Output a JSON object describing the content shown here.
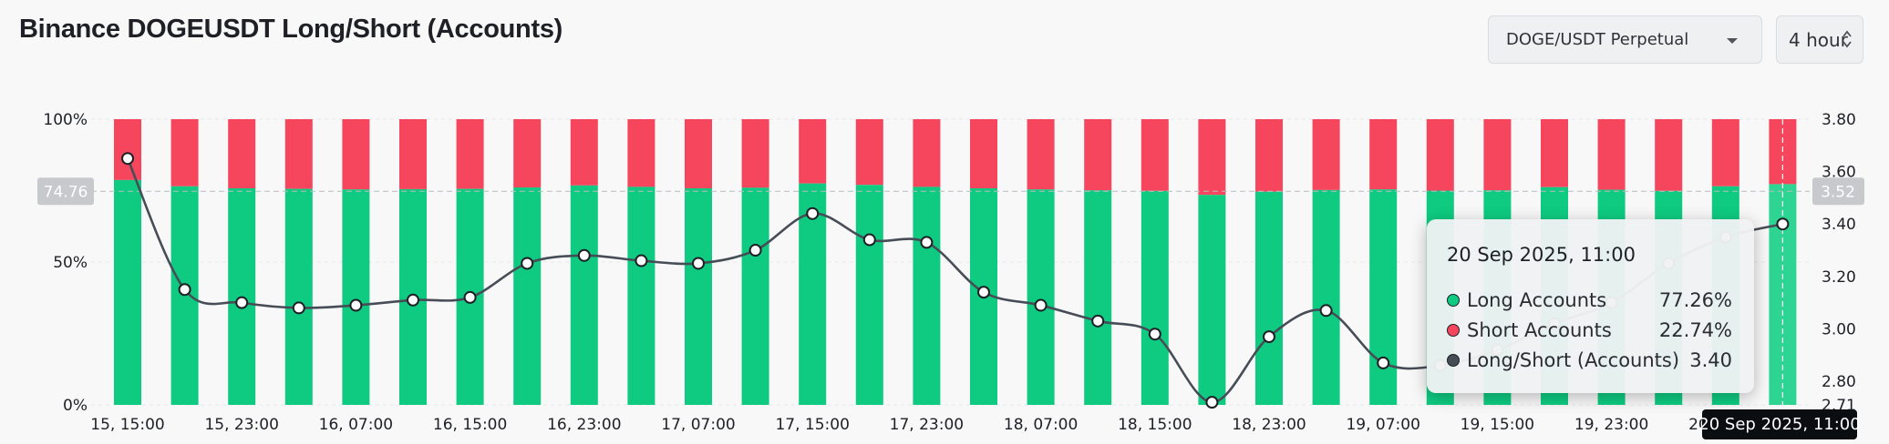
{
  "header": {
    "title": "Binance DOGEUSDT Long/Short (Accounts)",
    "market_select": "DOGE/USDT Perpetual",
    "period_select": "4 hour"
  },
  "colors": {
    "long": "#0ecb81",
    "short": "#f6465d",
    "ratio_line": "#474d57",
    "background": "#f8f8f8"
  },
  "icons": {
    "market_caret": "chevron-down-icon",
    "period_caret": "up-down-chevron-icon"
  },
  "chart_data": {
    "type": "bar",
    "title": "Binance DOGEUSDT Long/Short (Accounts)",
    "categories": [
      "15, 15:00",
      "15, 19:00",
      "15, 23:00",
      "16, 03:00",
      "16, 07:00",
      "16, 11:00",
      "16, 15:00",
      "16, 19:00",
      "16, 23:00",
      "17, 03:00",
      "17, 07:00",
      "17, 11:00",
      "17, 15:00",
      "17, 19:00",
      "17, 23:00",
      "18, 03:00",
      "18, 07:00",
      "18, 11:00",
      "18, 15:00",
      "18, 19:00",
      "18, 23:00",
      "19, 03:00",
      "19, 07:00",
      "19, 11:00",
      "19, 15:00",
      "19, 19:00",
      "19, 23:00",
      "20, 03:00",
      "20, 07:00",
      "20, 11:00"
    ],
    "x_tick_labels": [
      "15, 15:00",
      "15, 23:00",
      "16, 07:00",
      "16, 15:00",
      "16, 23:00",
      "17, 07:00",
      "17, 15:00",
      "17, 23:00",
      "18, 07:00",
      "18, 15:00",
      "18, 23:00",
      "19, 07:00",
      "19, 15:00",
      "19, 23:00",
      "20, 07:00"
    ],
    "series": [
      {
        "name": "Long Accounts",
        "axis": "left",
        "values": [
          78.7,
          76.5,
          75.8,
          75.6,
          75.4,
          75.5,
          75.6,
          76.1,
          76.8,
          76.3,
          75.8,
          76.0,
          77.5,
          77.0,
          76.3,
          75.8,
          75.4,
          75.1,
          74.9,
          73.5,
          74.6,
          75.2,
          75.4,
          75.0,
          75.1,
          76.2,
          75.3,
          74.9,
          76.5,
          77.26
        ]
      },
      {
        "name": "Short Accounts",
        "axis": "left",
        "values": [
          21.3,
          23.5,
          24.2,
          24.4,
          24.6,
          24.5,
          24.4,
          23.9,
          23.2,
          23.7,
          24.2,
          24.0,
          22.5,
          23.0,
          23.7,
          24.2,
          24.6,
          24.9,
          25.1,
          26.5,
          25.4,
          24.8,
          24.6,
          25.0,
          24.9,
          23.8,
          24.7,
          25.1,
          23.5,
          22.74
        ]
      },
      {
        "name": "Long/Short (Accounts)",
        "axis": "right",
        "values": [
          3.65,
          3.15,
          3.1,
          3.08,
          3.09,
          3.11,
          3.12,
          3.25,
          3.28,
          3.26,
          3.25,
          3.3,
          3.44,
          3.34,
          3.33,
          3.14,
          3.09,
          3.03,
          2.98,
          2.72,
          2.97,
          3.07,
          2.87,
          2.86,
          2.92,
          3.02,
          3.1,
          3.25,
          3.35,
          3.4
        ]
      }
    ],
    "y_left": {
      "ticks": [
        "0%",
        "50%",
        "100%"
      ],
      "ylim": [
        0,
        100
      ]
    },
    "y_right": {
      "ticks": [
        "2.71",
        "2.80",
        "3.00",
        "3.20",
        "3.40",
        "3.60",
        "3.80"
      ],
      "ylim": [
        2.71,
        3.8
      ]
    },
    "crosshair": {
      "left_value": "74.76",
      "right_value": "3.52"
    },
    "hover_index": 29,
    "grid": true
  },
  "tooltip": {
    "title": "20 Sep 2025, 11:00",
    "rows": [
      {
        "label": "Long Accounts",
        "value": "77.26%"
      },
      {
        "label": "Short Accounts",
        "value": "22.74%"
      },
      {
        "label": "Long/Short (Accounts)",
        "value": "3.40"
      }
    ],
    "time_label": "20 Sep 2025, 11:00"
  }
}
